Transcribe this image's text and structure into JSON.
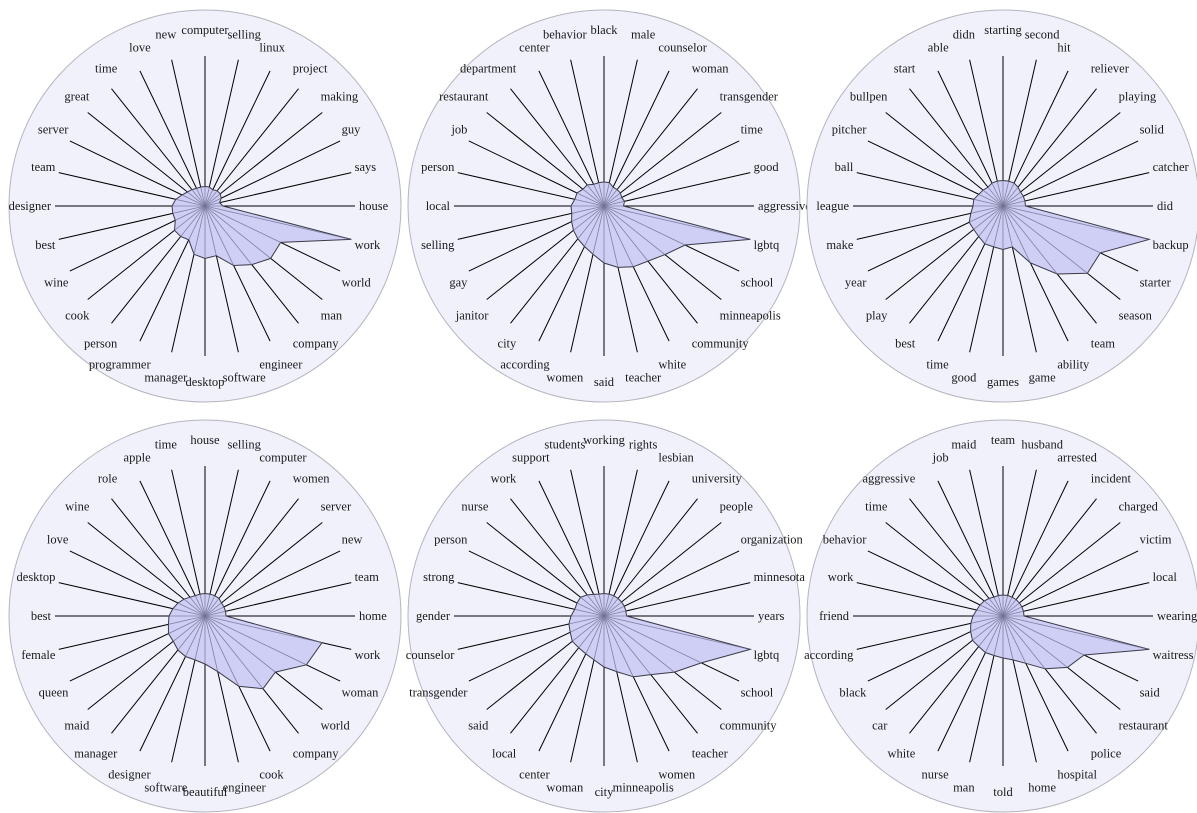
{
  "chart_data": [
    {
      "type": "radar",
      "categories": [
        "house",
        "says",
        "guy",
        "making",
        "project",
        "linux",
        "selling",
        "computer",
        "new",
        "love",
        "time",
        "great",
        "server",
        "team",
        "designer",
        "best",
        "wine",
        "cook",
        "person",
        "programmer",
        "manager",
        "desktop",
        "software",
        "engineer",
        "company",
        "man",
        "world",
        "work"
      ],
      "values": [
        0.12,
        0.1,
        0.12,
        0.13,
        0.13,
        0.12,
        0.13,
        0.13,
        0.13,
        0.13,
        0.14,
        0.15,
        0.17,
        0.2,
        0.22,
        0.22,
        0.22,
        0.26,
        0.26,
        0.25,
        0.33,
        0.35,
        0.34,
        0.44,
        0.5,
        0.56,
        0.56,
        1.0
      ],
      "rlim": [
        0,
        1
      ],
      "grid": false
    },
    {
      "type": "radar",
      "categories": [
        "aggressive",
        "good",
        "time",
        "transgender",
        "woman",
        "counselor",
        "male",
        "black",
        "behavior",
        "center",
        "department",
        "restaurant",
        "job",
        "person",
        "local",
        "selling",
        "gay",
        "janitor",
        "city",
        "according",
        "women",
        "said",
        "teacher",
        "white",
        "community",
        "minneapolis",
        "school",
        "lgbtq"
      ],
      "values": [
        0.13,
        0.14,
        0.13,
        0.14,
        0.14,
        0.14,
        0.16,
        0.16,
        0.16,
        0.16,
        0.18,
        0.18,
        0.2,
        0.2,
        0.22,
        0.22,
        0.24,
        0.26,
        0.28,
        0.3,
        0.33,
        0.38,
        0.42,
        0.45,
        0.47,
        0.52,
        0.6,
        1.0
      ],
      "rlim": [
        0,
        1
      ],
      "grid": false
    },
    {
      "type": "radar",
      "categories": [
        "did",
        "catcher",
        "solid",
        "playing",
        "reliever",
        "hit",
        "second",
        "starting",
        "didn",
        "able",
        "start",
        "bullpen",
        "pitcher",
        "ball",
        "league",
        "make",
        "year",
        "play",
        "best",
        "time",
        "good",
        "games",
        "game",
        "ability",
        "team",
        "season",
        "starter",
        "backup"
      ],
      "values": [
        0.15,
        0.15,
        0.15,
        0.15,
        0.16,
        0.17,
        0.17,
        0.17,
        0.17,
        0.17,
        0.16,
        0.17,
        0.18,
        0.2,
        0.2,
        0.22,
        0.25,
        0.25,
        0.26,
        0.28,
        0.28,
        0.29,
        0.28,
        0.42,
        0.58,
        0.72,
        0.72,
        1.0
      ],
      "rlim": [
        0,
        1
      ],
      "grid": false
    },
    {
      "type": "radar",
      "categories": [
        "home",
        "team",
        "new",
        "server",
        "women",
        "computer",
        "selling",
        "house",
        "time",
        "apple",
        "role",
        "wine",
        "love",
        "desktop",
        "best",
        "female",
        "queen",
        "maid",
        "manager",
        "designer",
        "software",
        "beautiful",
        "engineer",
        "cook",
        "company",
        "world",
        "woman",
        "work"
      ],
      "values": [
        0.14,
        0.14,
        0.14,
        0.14,
        0.15,
        0.15,
        0.15,
        0.15,
        0.15,
        0.15,
        0.16,
        0.18,
        0.2,
        0.22,
        0.24,
        0.25,
        0.27,
        0.27,
        0.29,
        0.3,
        0.3,
        0.32,
        0.38,
        0.52,
        0.62,
        0.6,
        0.75,
        0.8
      ],
      "rlim": [
        0,
        1
      ],
      "grid": false
    },
    {
      "type": "radar",
      "categories": [
        "years",
        "minnesota",
        "organization",
        "people",
        "university",
        "lesbian",
        "rights",
        "working",
        "students",
        "support",
        "work",
        "nurse",
        "person",
        "strong",
        "gender",
        "counselor",
        "transgender",
        "said",
        "local",
        "center",
        "woman",
        "city",
        "minneapolis",
        "women",
        "teacher",
        "community",
        "school",
        "lgbtq"
      ],
      "values": [
        0.15,
        0.15,
        0.15,
        0.15,
        0.15,
        0.15,
        0.15,
        0.15,
        0.15,
        0.16,
        0.18,
        0.2,
        0.2,
        0.2,
        0.22,
        0.24,
        0.25,
        0.27,
        0.27,
        0.28,
        0.3,
        0.34,
        0.38,
        0.45,
        0.5,
        0.6,
        0.72,
        1.0
      ],
      "rlim": [
        0,
        1
      ],
      "grid": false
    },
    {
      "type": "radar",
      "categories": [
        "wearing",
        "local",
        "victim",
        "charged",
        "incident",
        "arrested",
        "husband",
        "team",
        "maid",
        "job",
        "aggressive",
        "time",
        "behavior",
        "work",
        "friend",
        "according",
        "black",
        "car",
        "white",
        "nurse",
        "man",
        "told",
        "home",
        "hospital",
        "police",
        "restaurant",
        "said",
        "waitress"
      ],
      "values": [
        0.14,
        0.14,
        0.14,
        0.14,
        0.14,
        0.14,
        0.14,
        0.14,
        0.14,
        0.14,
        0.15,
        0.16,
        0.17,
        0.18,
        0.2,
        0.22,
        0.24,
        0.26,
        0.26,
        0.27,
        0.27,
        0.28,
        0.3,
        0.35,
        0.45,
        0.55,
        0.6,
        1.0
      ],
      "rlim": [
        0,
        1
      ],
      "grid": false
    }
  ]
}
